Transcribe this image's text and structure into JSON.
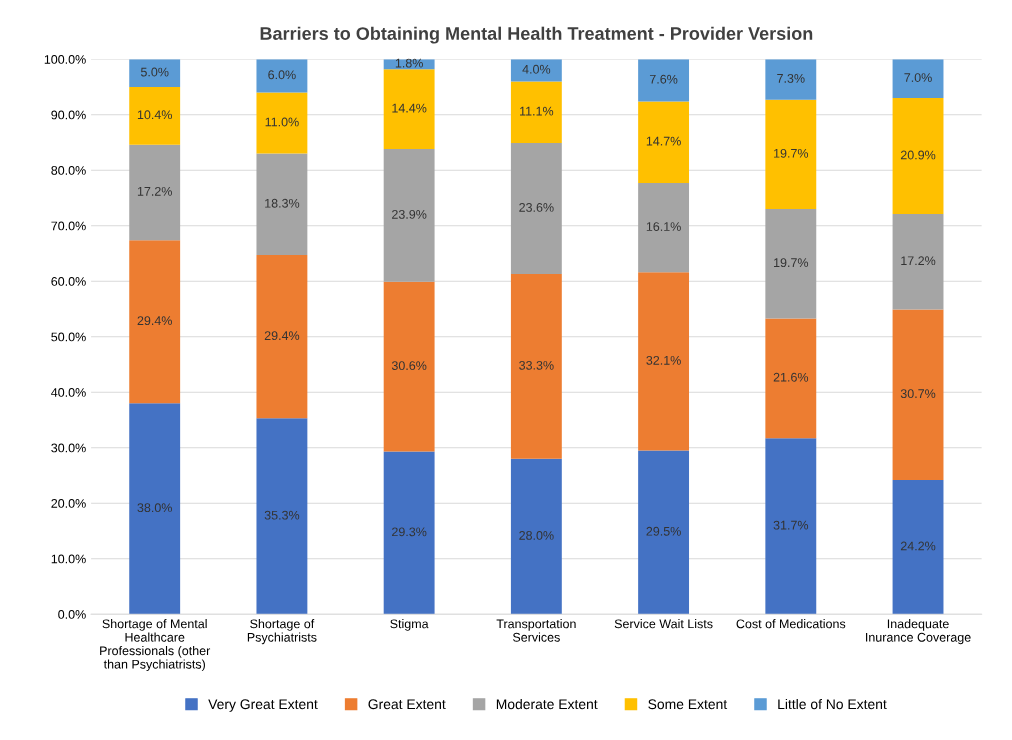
{
  "chart_data": {
    "type": "bar",
    "stacked": true,
    "title": "Barriers to Obtaining Mental Health Treatment - Provider Version",
    "categories": [
      "Shortage of Mental\nHealthcare\nProfessionals (other\nthan Psychiatrists)",
      "Shortage of\nPsychiatrists",
      "Stigma",
      "Transportation\nServices",
      "Service Wait Lists",
      "Cost of Medications",
      "Inadequate\nInurance Coverage"
    ],
    "series": [
      {
        "name": "Very Great Extent",
        "color": "#4472c4",
        "values": [
          38.0,
          35.3,
          29.3,
          28.0,
          29.5,
          31.7,
          24.2
        ],
        "value_labels": [
          "38.0%",
          "35.3%",
          "29.3%",
          "28.0%",
          "29.5%",
          "31.7%",
          "24.2%"
        ]
      },
      {
        "name": "Great Extent",
        "color": "#ed7d31",
        "values": [
          29.4,
          29.4,
          30.6,
          33.3,
          32.1,
          21.6,
          30.7
        ],
        "value_labels": [
          "29.4%",
          "29.4%",
          "30.6%",
          "33.3%",
          "32.1%",
          "21.6%",
          "30.7%"
        ]
      },
      {
        "name": "Moderate Extent",
        "color": "#a5a5a5",
        "values": [
          17.2,
          18.3,
          23.9,
          23.6,
          16.1,
          19.7,
          17.2
        ],
        "value_labels": [
          "17.2%",
          "18.3%",
          "23.9%",
          "23.6%",
          "16.1%",
          "19.7%",
          "17.2%"
        ]
      },
      {
        "name": "Some Extent",
        "color": "#ffc000",
        "values": [
          10.4,
          11.0,
          14.4,
          11.1,
          14.7,
          19.7,
          20.9
        ],
        "value_labels": [
          "10.4%",
          "11.0%",
          "14.4%",
          "11.1%",
          "14.7%",
          "19.7%",
          "20.9%"
        ]
      },
      {
        "name": "Little of No Extent",
        "color": "#5b9bd5",
        "values": [
          5.0,
          6.0,
          1.8,
          4.0,
          7.6,
          7.3,
          7.0
        ],
        "value_labels": [
          "5.0%",
          "6.0%",
          "1.8%",
          "4.0%",
          "7.6%",
          "7.3%",
          "7.0%"
        ]
      }
    ],
    "ylim": [
      0,
      100
    ],
    "yticks": [
      {
        "value": 0,
        "label": "0.0%"
      },
      {
        "value": 10,
        "label": "10.0%"
      },
      {
        "value": 20,
        "label": "20.0%"
      },
      {
        "value": 30,
        "label": "30.0%"
      },
      {
        "value": 40,
        "label": "40.0%"
      },
      {
        "value": 50,
        "label": "50.0%"
      },
      {
        "value": 60,
        "label": "60.0%"
      },
      {
        "value": 70,
        "label": "70.0%"
      },
      {
        "value": 80,
        "label": "80.0%"
      },
      {
        "value": 90,
        "label": "90.0%"
      },
      {
        "value": 100,
        "label": "100.0%"
      }
    ],
    "grid": "y",
    "legend": "bottom"
  }
}
